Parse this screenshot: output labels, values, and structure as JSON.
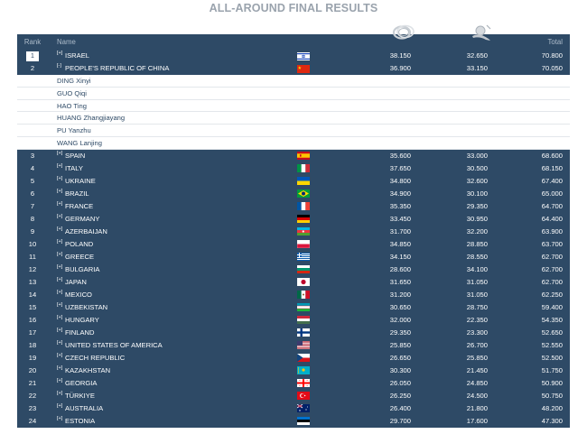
{
  "title": "ALL-AROUND FINAL RESULTS",
  "header": {
    "rank": "Rank",
    "name": "Name",
    "apparatus1_icon": "hoop-icon",
    "apparatus2_icon": "ball-icon",
    "total": "Total"
  },
  "expand_symbol": "[+]",
  "collapse_symbol": "[-]",
  "rows": [
    {
      "rank": "1",
      "name": "ISRAEL",
      "flag": "isr",
      "s1": "38.150",
      "s2": "32.650",
      "total": "70.800"
    },
    {
      "rank": "2",
      "name": "PEOPLE'S REPUBLIC OF CHINA",
      "flag": "chn",
      "s1": "36.900",
      "s2": "33.150",
      "total": "70.050"
    },
    {
      "rank": "3",
      "name": "SPAIN",
      "flag": "esp",
      "s1": "35.600",
      "s2": "33.000",
      "total": "68.600"
    },
    {
      "rank": "4",
      "name": "ITALY",
      "flag": "ita",
      "s1": "37.650",
      "s2": "30.500",
      "total": "68.150"
    },
    {
      "rank": "5",
      "name": "UKRAINE",
      "flag": "ukr",
      "s1": "34.800",
      "s2": "32.600",
      "total": "67.400"
    },
    {
      "rank": "6",
      "name": "BRAZIL",
      "flag": "bra",
      "s1": "34.900",
      "s2": "30.100",
      "total": "65.000"
    },
    {
      "rank": "7",
      "name": "FRANCE",
      "flag": "fra",
      "s1": "35.350",
      "s2": "29.350",
      "total": "64.700"
    },
    {
      "rank": "8",
      "name": "GERMANY",
      "flag": "ger",
      "s1": "33.450",
      "s2": "30.950",
      "total": "64.400"
    },
    {
      "rank": "9",
      "name": "AZERBAIJAN",
      "flag": "aze",
      "s1": "31.700",
      "s2": "32.200",
      "total": "63.900"
    },
    {
      "rank": "10",
      "name": "POLAND",
      "flag": "pol",
      "s1": "34.850",
      "s2": "28.850",
      "total": "63.700"
    },
    {
      "rank": "11",
      "name": "GREECE",
      "flag": "gre",
      "s1": "34.150",
      "s2": "28.550",
      "total": "62.700"
    },
    {
      "rank": "12",
      "name": "BULGARIA",
      "flag": "bul",
      "s1": "28.600",
      "s2": "34.100",
      "total": "62.700"
    },
    {
      "rank": "13",
      "name": "JAPAN",
      "flag": "jpn",
      "s1": "31.650",
      "s2": "31.050",
      "total": "62.700"
    },
    {
      "rank": "14",
      "name": "MEXICO",
      "flag": "mex",
      "s1": "31.200",
      "s2": "31.050",
      "total": "62.250"
    },
    {
      "rank": "15",
      "name": "UZBEKISTAN",
      "flag": "uzb",
      "s1": "30.650",
      "s2": "28.750",
      "total": "59.400"
    },
    {
      "rank": "16",
      "name": "HUNGARY",
      "flag": "hun",
      "s1": "32.000",
      "s2": "22.350",
      "total": "54.350"
    },
    {
      "rank": "17",
      "name": "FINLAND",
      "flag": "fin",
      "s1": "29.350",
      "s2": "23.300",
      "total": "52.650"
    },
    {
      "rank": "18",
      "name": "UNITED STATES OF AMERICA",
      "flag": "usa",
      "s1": "25.850",
      "s2": "26.700",
      "total": "52.550"
    },
    {
      "rank": "19",
      "name": "CZECH REPUBLIC",
      "flag": "cze",
      "s1": "26.650",
      "s2": "25.850",
      "total": "52.500"
    },
    {
      "rank": "20",
      "name": "KAZAKHSTAN",
      "flag": "kaz",
      "s1": "30.300",
      "s2": "21.450",
      "total": "51.750"
    },
    {
      "rank": "21",
      "name": "GEORGIA",
      "flag": "geo",
      "s1": "26.050",
      "s2": "24.850",
      "total": "50.900"
    },
    {
      "rank": "22",
      "name": "TÜRKIYE",
      "flag": "tur",
      "s1": "26.250",
      "s2": "24.500",
      "total": "50.750"
    },
    {
      "rank": "23",
      "name": "AUSTRALIA",
      "flag": "aus",
      "s1": "26.400",
      "s2": "21.800",
      "total": "48.200"
    },
    {
      "rank": "24",
      "name": "ESTONIA",
      "flag": "est",
      "s1": "29.700",
      "s2": "17.600",
      "total": "47.300"
    }
  ],
  "expanded_members": [
    "DING Xinyi",
    "GUO Qiqi",
    "HAO Ting",
    "HUANG Zhangjiayang",
    "PU Yanzhu",
    "WANG Lanjing"
  ],
  "colors": {
    "row_bg": "#2e4a66",
    "header_text": "#aebccb",
    "title_text": "#9aa3ad",
    "member_text": "#2e4a66"
  }
}
